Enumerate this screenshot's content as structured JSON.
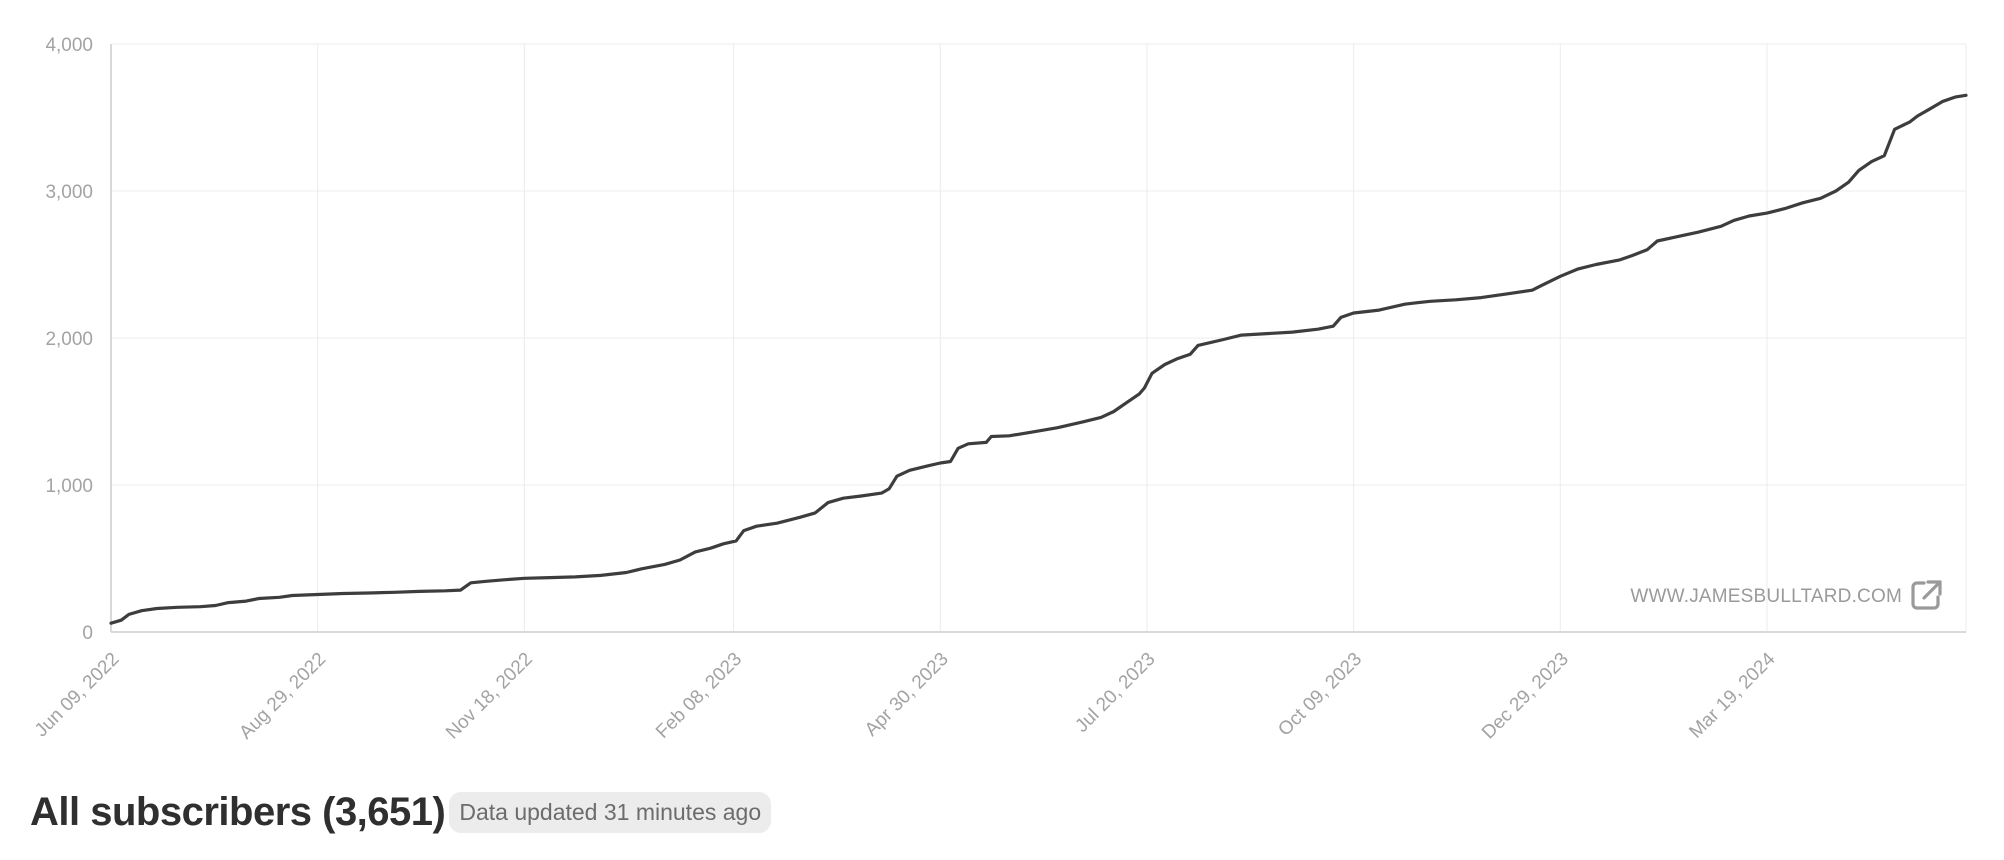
{
  "header": {
    "title": "All subscribers (3,651)",
    "status": "Data updated 31 minutes ago"
  },
  "watermark": {
    "text": "WWW.JAMESBULLTARD.COM",
    "icon": "external-link-icon"
  },
  "colors": {
    "line": "#3d3d3d",
    "grid": "#ececec",
    "tick_text": "#a3a3a3",
    "title": "#2f2f2f",
    "pill_bg": "#ececec"
  },
  "chart_data": {
    "type": "line",
    "title": "",
    "xlabel": "",
    "ylabel": "",
    "ylim": [
      0,
      4000
    ],
    "yticks": [
      0,
      1000,
      2000,
      3000,
      4000
    ],
    "ytick_labels": [
      "0",
      "1,000",
      "2,000",
      "3,000",
      "4,000"
    ],
    "xlim": [
      "2022-06-09",
      "2024-06-05"
    ],
    "xtick_dates": [
      "2022-06-09",
      "2022-08-29",
      "2022-11-18",
      "2023-02-08",
      "2023-04-30",
      "2023-07-20",
      "2023-10-09",
      "2023-12-29",
      "2024-03-19"
    ],
    "xtick_labels": [
      "Jun 09, 2022",
      "Aug 29, 2022",
      "Nov 18, 2022",
      "Feb 08, 2023",
      "Apr 30, 2023",
      "Jul 20, 2023",
      "Oct 09, 2023",
      "Dec 29, 2023",
      "Mar 19, 2024"
    ],
    "grid": true,
    "series": [
      {
        "values": [
          [
            "2022-06-09",
            60
          ],
          [
            "2022-06-13",
            80
          ],
          [
            "2022-06-16",
            120
          ],
          [
            "2022-06-21",
            145
          ],
          [
            "2022-06-27",
            160
          ],
          [
            "2022-07-05",
            168
          ],
          [
            "2022-07-14",
            172
          ],
          [
            "2022-07-20",
            180
          ],
          [
            "2022-07-25",
            200
          ],
          [
            "2022-08-01",
            210
          ],
          [
            "2022-08-06",
            228
          ],
          [
            "2022-08-14",
            236
          ],
          [
            "2022-08-19",
            248
          ],
          [
            "2022-08-29",
            255
          ],
          [
            "2022-09-08",
            262
          ],
          [
            "2022-09-18",
            265
          ],
          [
            "2022-09-28",
            270
          ],
          [
            "2022-10-08",
            276
          ],
          [
            "2022-10-18",
            280
          ],
          [
            "2022-10-24",
            285
          ],
          [
            "2022-10-28",
            335
          ],
          [
            "2022-11-03",
            345
          ],
          [
            "2022-11-10",
            355
          ],
          [
            "2022-11-18",
            365
          ],
          [
            "2022-11-28",
            370
          ],
          [
            "2022-12-08",
            375
          ],
          [
            "2022-12-18",
            385
          ],
          [
            "2022-12-28",
            405
          ],
          [
            "2023-01-03",
            430
          ],
          [
            "2023-01-12",
            460
          ],
          [
            "2023-01-18",
            490
          ],
          [
            "2023-01-24",
            545
          ],
          [
            "2023-01-30",
            570
          ],
          [
            "2023-02-04",
            600
          ],
          [
            "2023-02-09",
            620
          ],
          [
            "2023-02-12",
            690
          ],
          [
            "2023-02-17",
            720
          ],
          [
            "2023-02-25",
            740
          ],
          [
            "2023-03-06",
            780
          ],
          [
            "2023-03-12",
            810
          ],
          [
            "2023-03-17",
            880
          ],
          [
            "2023-03-23",
            910
          ],
          [
            "2023-03-30",
            925
          ],
          [
            "2023-04-07",
            945
          ],
          [
            "2023-04-10",
            975
          ],
          [
            "2023-04-13",
            1060
          ],
          [
            "2023-04-18",
            1100
          ],
          [
            "2023-04-25",
            1130
          ],
          [
            "2023-04-30",
            1150
          ],
          [
            "2023-05-04",
            1160
          ],
          [
            "2023-05-07",
            1250
          ],
          [
            "2023-05-11",
            1280
          ],
          [
            "2023-05-18",
            1290
          ],
          [
            "2023-05-20",
            1330
          ],
          [
            "2023-05-27",
            1335
          ],
          [
            "2023-06-05",
            1360
          ],
          [
            "2023-06-15",
            1390
          ],
          [
            "2023-06-25",
            1430
          ],
          [
            "2023-07-02",
            1460
          ],
          [
            "2023-07-07",
            1500
          ],
          [
            "2023-07-12",
            1560
          ],
          [
            "2023-07-17",
            1620
          ],
          [
            "2023-07-19",
            1660
          ],
          [
            "2023-07-22",
            1760
          ],
          [
            "2023-07-27",
            1820
          ],
          [
            "2023-08-01",
            1860
          ],
          [
            "2023-08-06",
            1890
          ],
          [
            "2023-08-09",
            1950
          ],
          [
            "2023-08-19",
            1990
          ],
          [
            "2023-08-26",
            2020
          ],
          [
            "2023-09-05",
            2030
          ],
          [
            "2023-09-15",
            2040
          ],
          [
            "2023-09-25",
            2060
          ],
          [
            "2023-10-01",
            2080
          ],
          [
            "2023-10-04",
            2140
          ],
          [
            "2023-10-09",
            2170
          ],
          [
            "2023-10-19",
            2190
          ],
          [
            "2023-10-29",
            2230
          ],
          [
            "2023-11-03",
            2240
          ],
          [
            "2023-11-08",
            2250
          ],
          [
            "2023-11-18",
            2260
          ],
          [
            "2023-11-28",
            2275
          ],
          [
            "2023-12-08",
            2300
          ],
          [
            "2023-12-18",
            2325
          ],
          [
            "2023-12-22",
            2360
          ],
          [
            "2023-12-29",
            2420
          ],
          [
            "2024-01-05",
            2470
          ],
          [
            "2024-01-12",
            2500
          ],
          [
            "2024-01-21",
            2530
          ],
          [
            "2024-01-26",
            2560
          ],
          [
            "2024-02-01",
            2600
          ],
          [
            "2024-02-05",
            2660
          ],
          [
            "2024-02-13",
            2690
          ],
          [
            "2024-02-21",
            2720
          ],
          [
            "2024-03-01",
            2760
          ],
          [
            "2024-03-06",
            2800
          ],
          [
            "2024-03-12",
            2830
          ],
          [
            "2024-03-19",
            2850
          ],
          [
            "2024-03-26",
            2880
          ],
          [
            "2024-04-02",
            2920
          ],
          [
            "2024-04-09",
            2950
          ],
          [
            "2024-04-15",
            3000
          ],
          [
            "2024-04-20",
            3060
          ],
          [
            "2024-04-24",
            3140
          ],
          [
            "2024-04-29",
            3200
          ],
          [
            "2024-05-04",
            3240
          ],
          [
            "2024-05-08",
            3420
          ],
          [
            "2024-05-14",
            3470
          ],
          [
            "2024-05-17",
            3510
          ],
          [
            "2024-05-22",
            3560
          ],
          [
            "2024-05-27",
            3610
          ],
          [
            "2024-06-01",
            3640
          ],
          [
            "2024-06-05",
            3651
          ]
        ]
      }
    ]
  }
}
